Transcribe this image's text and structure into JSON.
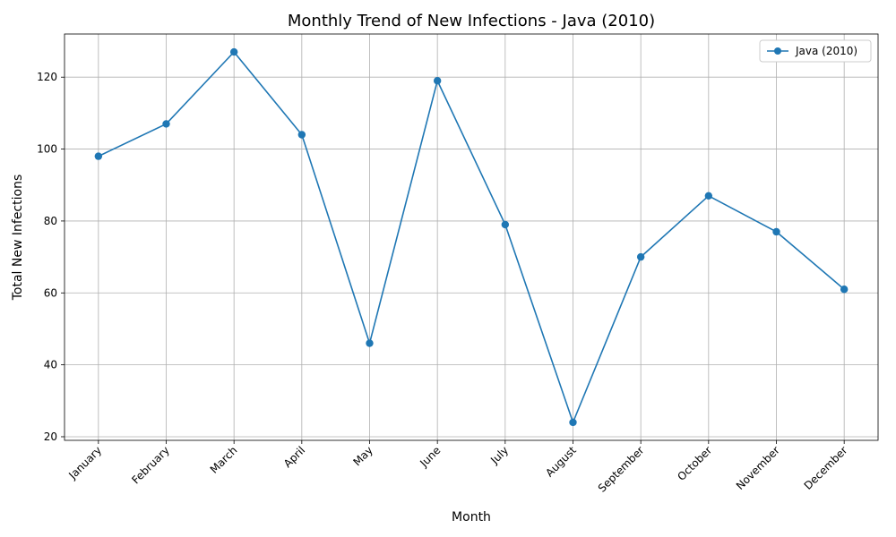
{
  "chart_data": {
    "type": "line",
    "title": "Monthly Trend of New Infections - Java (2010)",
    "xlabel": "Month",
    "ylabel": "Total New Infections",
    "categories": [
      "January",
      "February",
      "March",
      "April",
      "May",
      "June",
      "July",
      "August",
      "September",
      "October",
      "November",
      "December"
    ],
    "series": [
      {
        "name": "Java (2010)",
        "values": [
          98,
          107,
          127,
          104,
          46,
          119,
          79,
          24,
          70,
          87,
          77,
          61
        ],
        "color": "#1f77b4",
        "marker": "circle"
      }
    ],
    "ylim": [
      19,
      132
    ],
    "yticks": [
      20,
      40,
      60,
      80,
      100,
      120
    ],
    "grid": true,
    "legend": "top-right",
    "x_tick_rotation": 45
  }
}
